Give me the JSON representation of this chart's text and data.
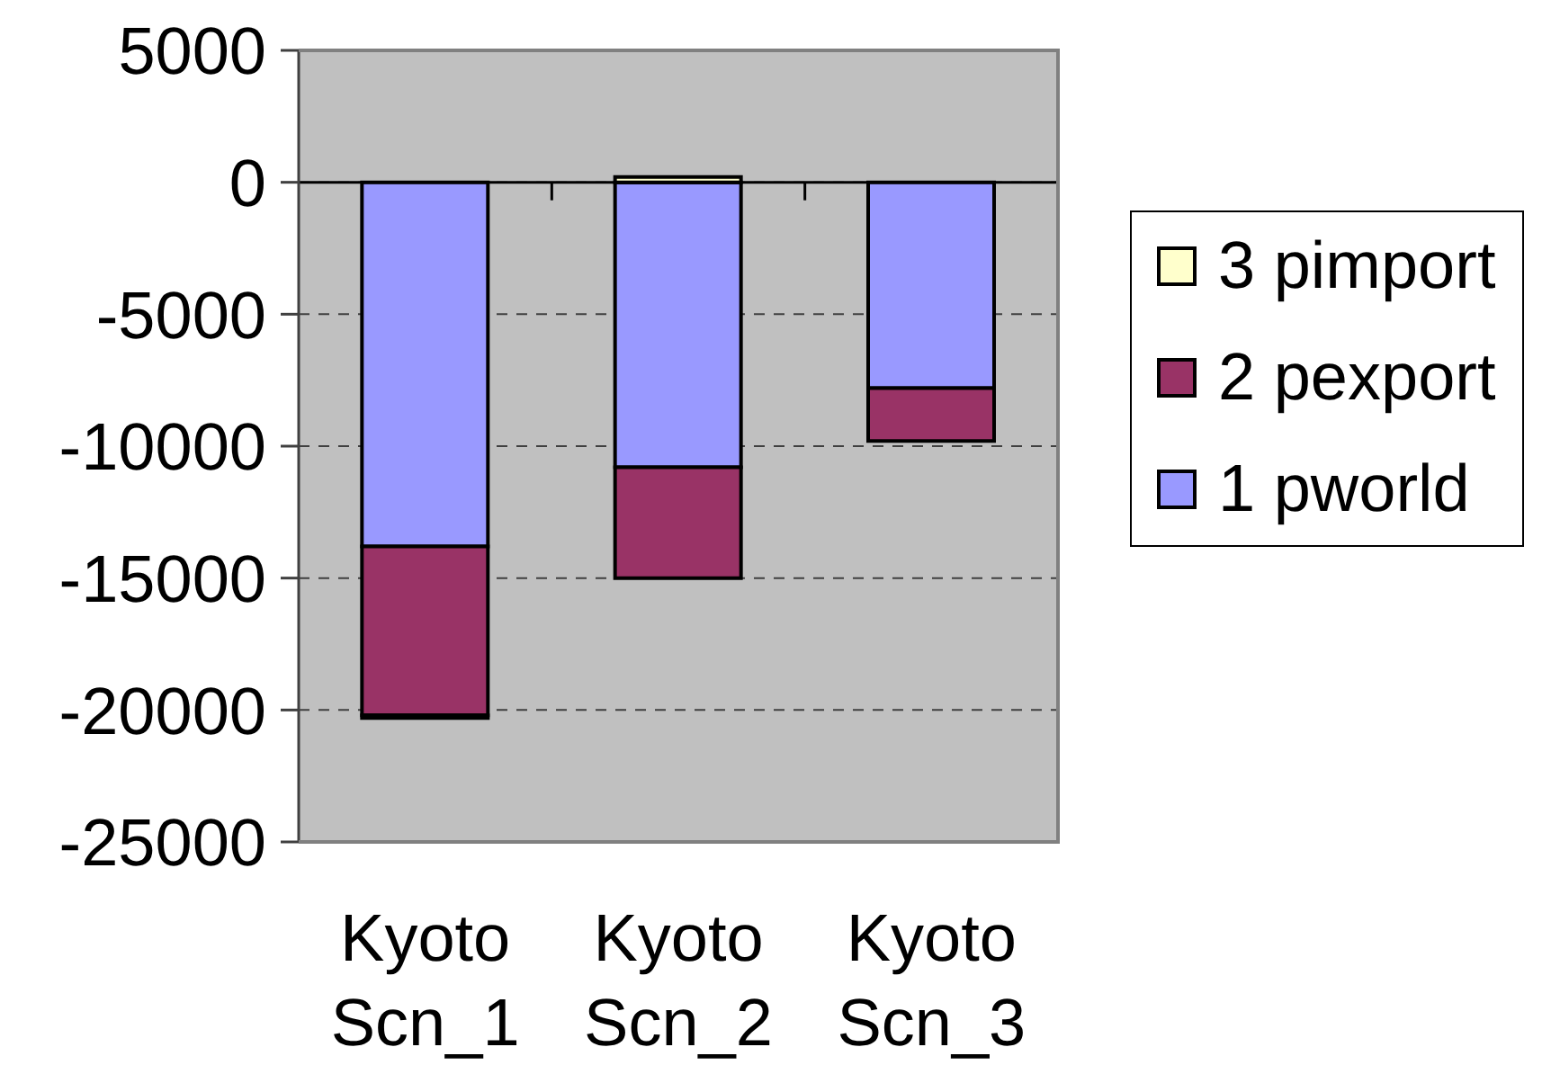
{
  "chart_data": {
    "type": "bar",
    "stacked": true,
    "categories": [
      "Kyoto Scn_1",
      "Kyoto Scn_2",
      "Kyoto Scn_3"
    ],
    "series": [
      {
        "name": "1 pworld",
        "color": "#9999ff",
        "values": [
          -13800,
          -10800,
          -7800
        ]
      },
      {
        "name": "2 pexport",
        "color": "#993366",
        "values": [
          -6400,
          -4200,
          -2000
        ]
      },
      {
        "name": "3 pimport",
        "color": "#ffffcc",
        "values": [
          -100,
          200,
          0
        ]
      }
    ],
    "ylim": [
      -25000,
      5000
    ],
    "yticks": [
      -25000,
      -20000,
      -15000,
      -10000,
      -5000,
      0,
      5000
    ],
    "grid": "y",
    "legend": "right"
  }
}
